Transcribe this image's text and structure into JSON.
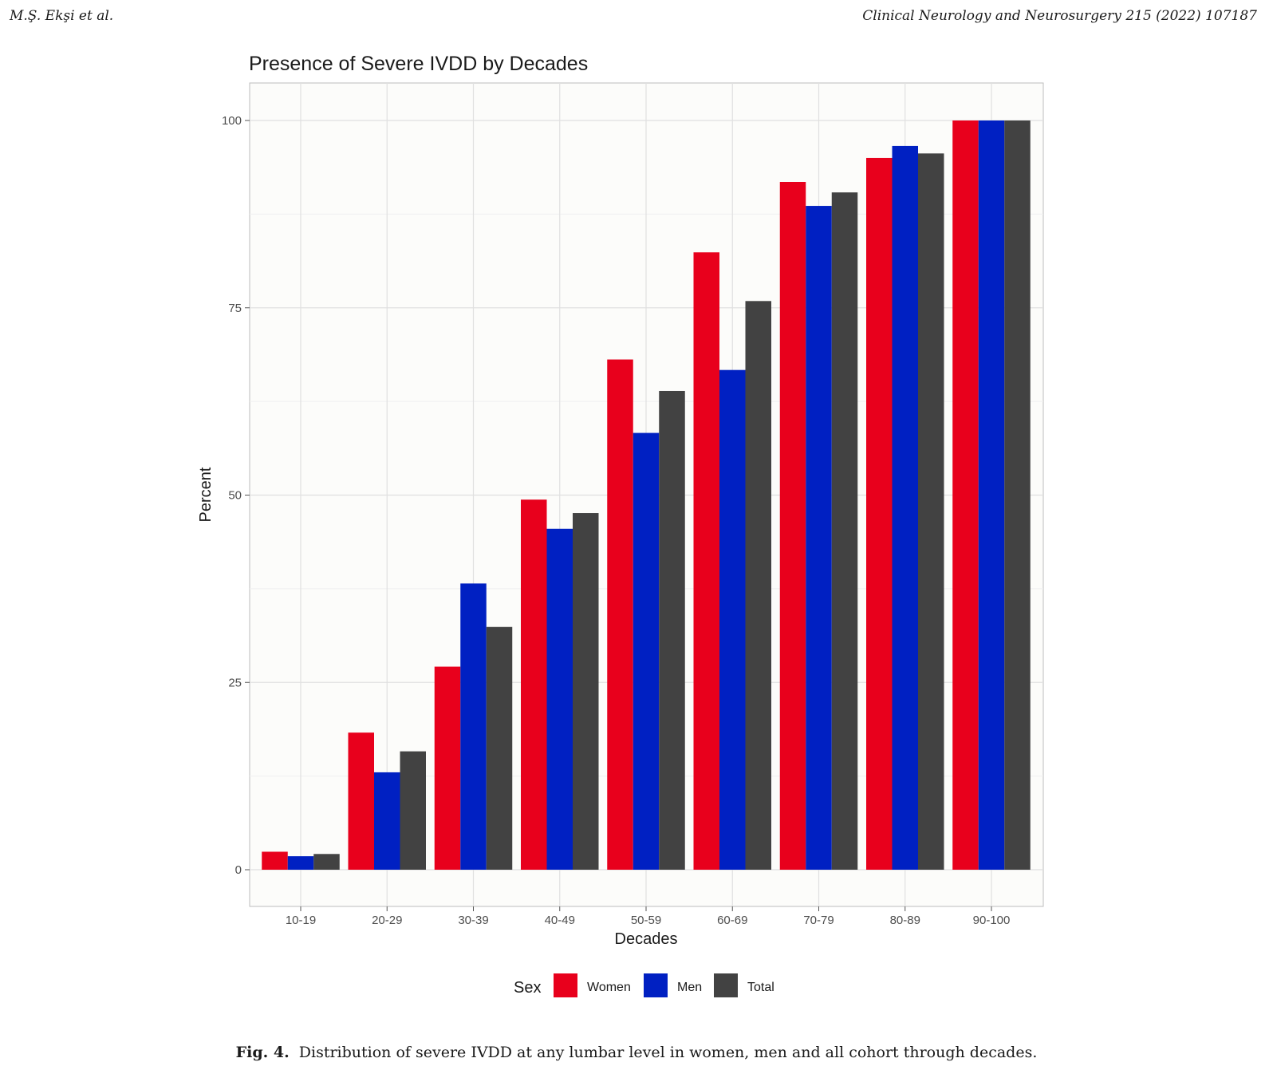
{
  "header": {
    "authors": "M.Ş. Ekşi et al.",
    "journal": "Clinical Neurology and Neurosurgery 215 (2022) 107187"
  },
  "caption": {
    "label": "Fig. 4.",
    "text": "Distribution of severe IVDD at any lumbar level in women, men and all cohort through decades."
  },
  "chart_data": {
    "type": "bar",
    "title": "Presence of Severe IVDD by Decades",
    "xlabel": "Decades",
    "ylabel": "Percent",
    "categories": [
      "10-19",
      "20-29",
      "30-39",
      "40-49",
      "50-59",
      "60-69",
      "70-79",
      "80-89",
      "90-100"
    ],
    "series": [
      {
        "name": "Women",
        "color": "#e8001c",
        "values": [
          2.4,
          18.3,
          27.1,
          49.4,
          68.1,
          82.4,
          91.8,
          95.0,
          100.0
        ]
      },
      {
        "name": "Men",
        "color": "#0020c2",
        "values": [
          1.8,
          13.0,
          38.2,
          45.5,
          58.3,
          66.7,
          88.6,
          96.6,
          100.0
        ]
      },
      {
        "name": "Total",
        "color": "#424242",
        "values": [
          2.1,
          15.8,
          32.4,
          47.6,
          63.9,
          75.9,
          90.4,
          95.6,
          100.0
        ]
      }
    ],
    "yticks": [
      0,
      25,
      50,
      75,
      100
    ],
    "ylim": [
      -5,
      105
    ],
    "grid": true,
    "legend_title": "Sex",
    "legend_position": "bottom"
  }
}
